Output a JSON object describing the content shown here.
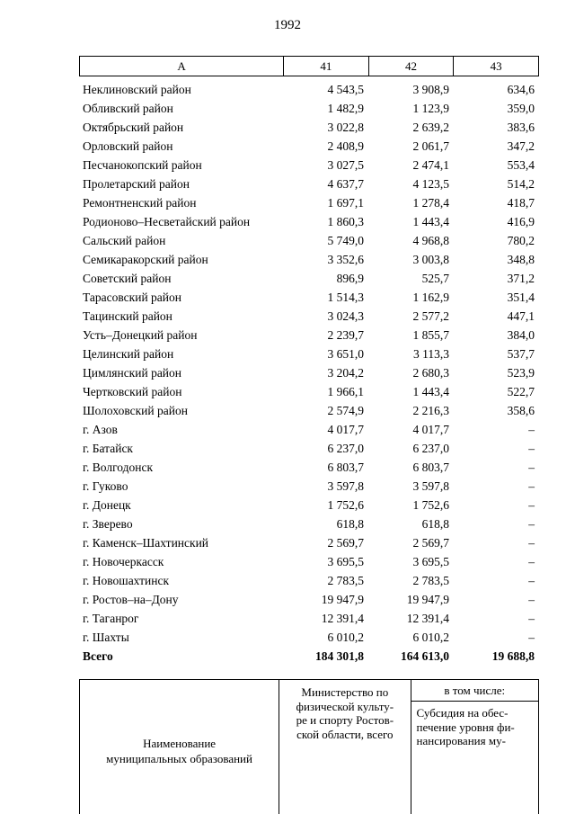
{
  "page": {
    "number": "1992"
  },
  "table": {
    "headers": [
      "А",
      "41",
      "42",
      "43"
    ],
    "rows": [
      [
        "Неклиновский район",
        "4 543,5",
        "3 908,9",
        "634,6"
      ],
      [
        "Обливский район",
        "1 482,9",
        "1 123,9",
        "359,0"
      ],
      [
        "Октябрьский район",
        "3 022,8",
        "2 639,2",
        "383,6"
      ],
      [
        "Орловский район",
        "2 408,9",
        "2 061,7",
        "347,2"
      ],
      [
        "Песчанокопский район",
        "3 027,5",
        "2 474,1",
        "553,4"
      ],
      [
        "Пролетарский район",
        "4 637,7",
        "4 123,5",
        "514,2"
      ],
      [
        "Ремонтненский район",
        "1 697,1",
        "1 278,4",
        "418,7"
      ],
      [
        "Родионово–Несветайский район",
        "1 860,3",
        "1 443,4",
        "416,9"
      ],
      [
        "Сальский район",
        "5 749,0",
        "4 968,8",
        "780,2"
      ],
      [
        "Семикаракорский район",
        "3 352,6",
        "3 003,8",
        "348,8"
      ],
      [
        "Советский район",
        "896,9",
        "525,7",
        "371,2"
      ],
      [
        "Тарасовский район",
        "1 514,3",
        "1 162,9",
        "351,4"
      ],
      [
        "Тацинский район",
        "3 024,3",
        "2 577,2",
        "447,1"
      ],
      [
        "Усть–Донецкий район",
        "2 239,7",
        "1 855,7",
        "384,0"
      ],
      [
        "Целинский район",
        "3 651,0",
        "3 113,3",
        "537,7"
      ],
      [
        "Цимлянский район",
        "3 204,2",
        "2 680,3",
        "523,9"
      ],
      [
        "Чертковский район",
        "1 966,1",
        "1 443,4",
        "522,7"
      ],
      [
        "Шолоховский район",
        "2 574,9",
        "2 216,3",
        "358,6"
      ],
      [
        "г. Азов",
        "4 017,7",
        "4 017,7",
        "–"
      ],
      [
        "г. Батайск",
        "6 237,0",
        "6 237,0",
        "–"
      ],
      [
        "г. Волгодонск",
        "6 803,7",
        "6 803,7",
        "–"
      ],
      [
        "г. Гуково",
        "3 597,8",
        "3 597,8",
        "–"
      ],
      [
        "г. Донецк",
        "1 752,6",
        "1 752,6",
        "–"
      ],
      [
        "г. Зверево",
        "618,8",
        "618,8",
        "–"
      ],
      [
        "г. Каменск–Шахтинский",
        "2 569,7",
        "2 569,7",
        "–"
      ],
      [
        "г. Новочеркасск",
        "3 695,5",
        "3 695,5",
        "–"
      ],
      [
        "г. Новошахтинск",
        "2 783,5",
        "2 783,5",
        "–"
      ],
      [
        "г. Ростов–на–Дону",
        "19 947,9",
        "19 947,9",
        "–"
      ],
      [
        "г. Таганрог",
        "12 391,4",
        "12 391,4",
        "–"
      ],
      [
        "г. Шахты",
        "6 010,2",
        "6 010,2",
        "–"
      ]
    ],
    "total": {
      "name": "Всего",
      "c41": "184 301,8",
      "c42": "164 613,0",
      "c43": "19 688,8"
    }
  },
  "footer": {
    "col1_lines": [
      "Наименование",
      "муниципальных образований"
    ],
    "col2_lines": [
      "Министерство по",
      "физической культу-",
      "ре и спорту Ростов-",
      "ской области, всего"
    ],
    "col3_top": "в том числе:",
    "col3_sub_lines": [
      "Субсидия на обес-",
      "печение уровня фи-",
      "нансирования му-"
    ]
  }
}
